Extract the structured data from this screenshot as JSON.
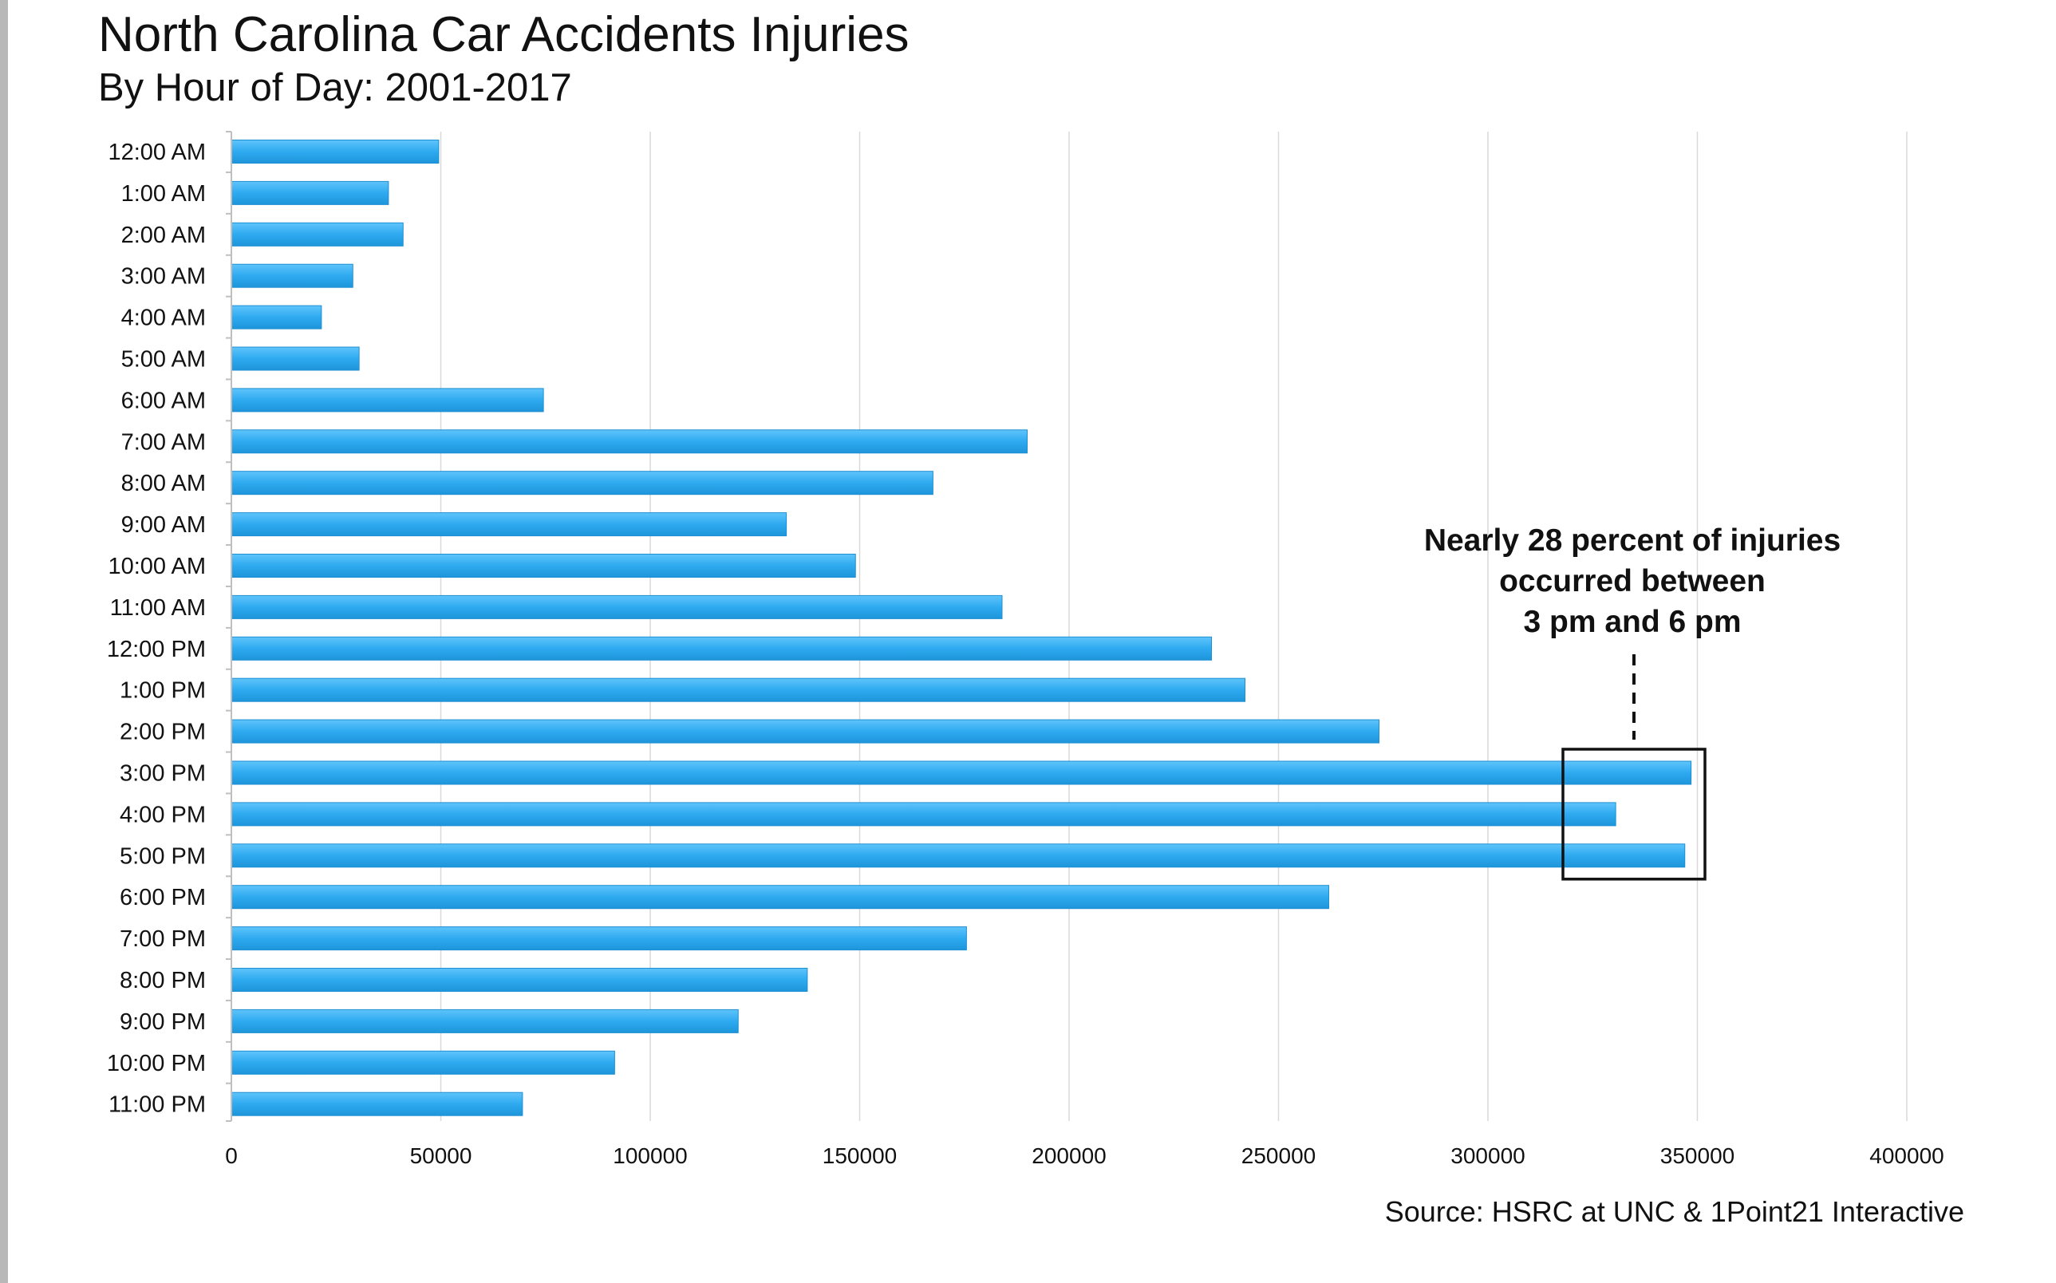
{
  "title": "North Carolina Car Accidents Injuries",
  "subtitle": "By Hour of Day: 2001-2017",
  "source": "Source: HSRC at UNC & 1Point21 Interactive",
  "colors": {
    "bar": "#2eaaf0",
    "bar_highlight": "#5fc4fb",
    "grid": "#d9d9d9",
    "axis": "#bfbfbf"
  },
  "chart_data": {
    "type": "bar",
    "orientation": "horizontal",
    "title": "North Carolina Car Accidents Injuries",
    "subtitle": "By Hour of Day: 2001-2017",
    "xlabel": "",
    "ylabel": "",
    "xlim": [
      0,
      400000
    ],
    "xticks": [
      "0",
      "50000",
      "100000",
      "150000",
      "200000",
      "250000",
      "300000",
      "350000",
      "400000"
    ],
    "xtick_values": [
      0,
      50000,
      100000,
      150000,
      200000,
      250000,
      300000,
      350000,
      400000
    ],
    "grid": true,
    "legend": "none",
    "categories": [
      "12:00 AM",
      "1:00 AM",
      "2:00 AM",
      "3:00 AM",
      "4:00 AM",
      "5:00 AM",
      "6:00 AM",
      "7:00 AM",
      "8:00 AM",
      "9:00 AM",
      "10:00 AM",
      "11:00 AM",
      "12:00 PM",
      "1:00 PM",
      "2:00 PM",
      "3:00 PM",
      "4:00 PM",
      "5:00 PM",
      "6:00 PM",
      "7:00 PM",
      "8:00 PM",
      "9:00 PM",
      "10:00 PM",
      "11:00 PM"
    ],
    "values": [
      49500,
      37500,
      41000,
      29000,
      21500,
      30500,
      74500,
      190000,
      167500,
      132500,
      149000,
      184000,
      234000,
      242000,
      274000,
      348500,
      330500,
      347000,
      262000,
      175500,
      137500,
      121000,
      91500,
      69500
    ],
    "annotation": {
      "lines": [
        "Nearly 28 percent of injuries",
        "occurred between",
        "3 pm and 6 pm"
      ],
      "categories": [
        "3:00 PM",
        "4:00 PM",
        "5:00 PM"
      ]
    }
  }
}
